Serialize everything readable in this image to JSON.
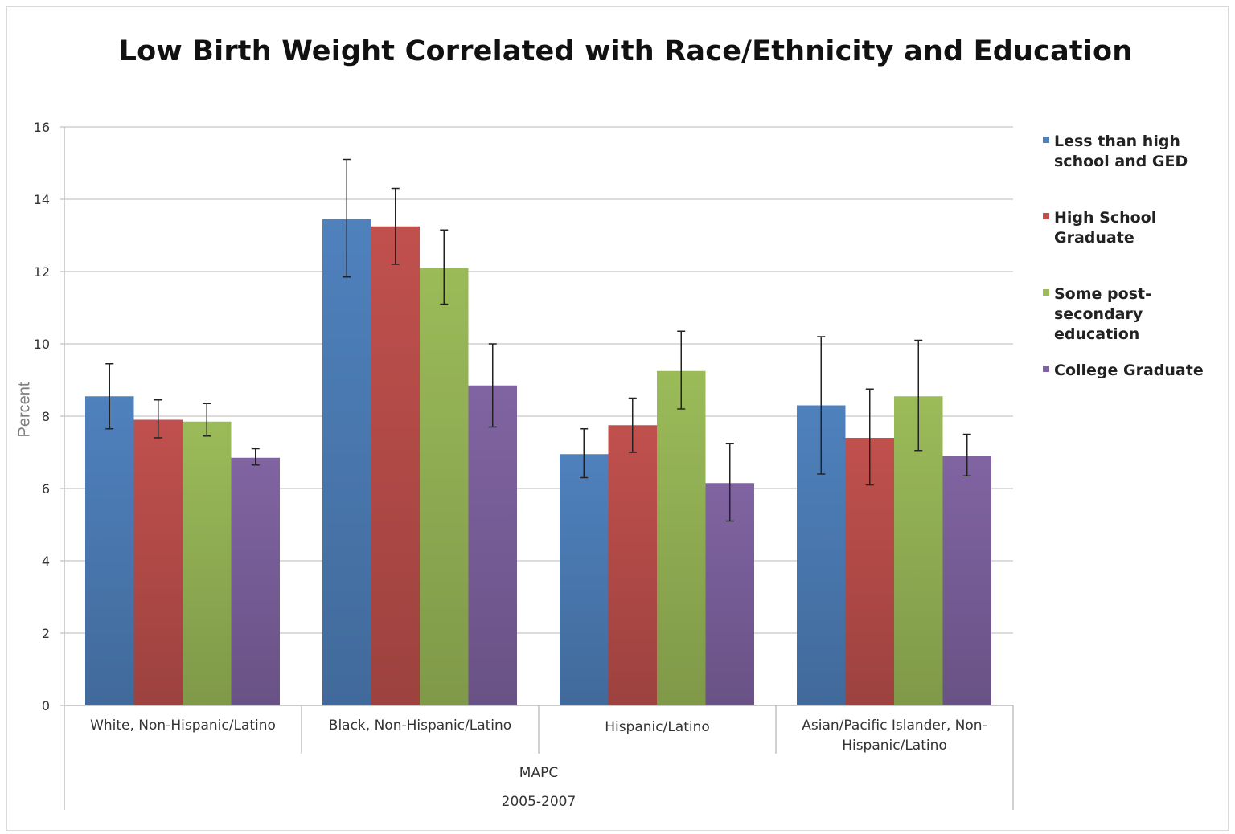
{
  "chart_data": {
    "type": "bar",
    "title": "Low Birth Weight Correlated with Race/Ethnicity and Education",
    "ylabel": "Percent",
    "xlabel_lines": [
      "MAPC",
      "2005-2007"
    ],
    "ylim": [
      0,
      16
    ],
    "yticks": [
      0,
      2,
      4,
      6,
      8,
      10,
      12,
      14,
      16
    ],
    "grid": true,
    "legend_position": "right",
    "categories": [
      "White, Non-Hispanic/Latino",
      "Black, Non-Hispanic/Latino",
      "Hispanic/Latino",
      "Asian/Pacific Islander, Non-Hispanic/Latino"
    ],
    "series": [
      {
        "name": "Less than high school and GED",
        "color": "#4f81bd",
        "values": [
          8.55,
          13.45,
          6.95,
          8.3
        ],
        "error_low": [
          7.65,
          11.85,
          6.3,
          6.4
        ],
        "error_high": [
          9.45,
          15.1,
          7.65,
          10.2
        ]
      },
      {
        "name": "High School Graduate",
        "color": "#c0504d",
        "values": [
          7.9,
          13.25,
          7.75,
          7.4
        ],
        "error_low": [
          7.4,
          12.2,
          7.0,
          6.1
        ],
        "error_high": [
          8.45,
          14.3,
          8.5,
          8.75
        ]
      },
      {
        "name": "Some post-secondary education",
        "color": "#9bbb59",
        "values": [
          7.85,
          12.1,
          9.25,
          8.55
        ],
        "error_low": [
          7.45,
          11.1,
          8.2,
          7.05
        ],
        "error_high": [
          8.35,
          13.15,
          10.35,
          10.1
        ]
      },
      {
        "name": "College Graduate",
        "color": "#8064a2",
        "values": [
          6.85,
          8.85,
          6.15,
          6.9
        ],
        "error_low": [
          6.65,
          7.7,
          5.1,
          6.35
        ],
        "error_high": [
          7.1,
          10.0,
          7.25,
          7.5
        ]
      }
    ]
  },
  "legend": {
    "items": [
      {
        "lines": [
          "Less than high",
          "school and GED"
        ],
        "color": "#4f81bd"
      },
      {
        "lines": [
          "High School",
          "Graduate"
        ],
        "color": "#c0504d"
      },
      {
        "lines": [
          "Some post-",
          "secondary",
          "education"
        ],
        "color": "#9bbb59"
      },
      {
        "lines": [
          "College Graduate"
        ],
        "color": "#8064a2"
      }
    ]
  },
  "category_label_lines": [
    [
      "White, Non-Hispanic/Latino"
    ],
    [
      "Black, Non-Hispanic/Latino"
    ],
    [
      "Hispanic/Latino"
    ],
    [
      "Asian/Pacific Islander, Non-",
      "Hispanic/Latino"
    ]
  ]
}
